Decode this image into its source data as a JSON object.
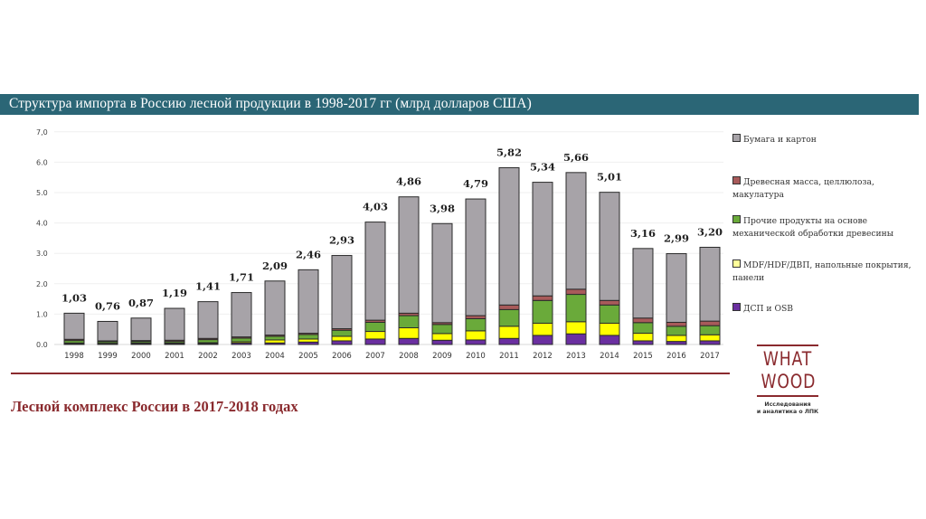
{
  "header": {
    "title": "Структура импорта в Россию лесной продукции в 1998-2017 гг (млрд долларов США)"
  },
  "footer": {
    "title": "Лесной комплекс России в 2017-2018 годах"
  },
  "logo": {
    "line1": "WHAT",
    "line2": "WOOD",
    "subtitle_line1": "Исследования",
    "subtitle_line2": "и аналитика о ЛПК"
  },
  "colors": {
    "banner": "#2b6676",
    "accent": "#8a2a2e"
  },
  "chart_data": {
    "type": "bar",
    "stacked": true,
    "title": "Структура импорта в Россию лесной продукции в 1998-2017 гг (млрд долларов США)",
    "xlabel": "",
    "ylabel": "",
    "ylim": [
      0,
      7
    ],
    "yticks": [
      0,
      1,
      2,
      3,
      4,
      5,
      6,
      7
    ],
    "ytick_labels": [
      "0.0",
      "1.0",
      "2.0",
      "3.0",
      "4.0",
      "5.0",
      "6.0",
      "7,0"
    ],
    "grid": true,
    "legend_position": "right",
    "categories": [
      "1998",
      "1999",
      "2000",
      "2001",
      "2002",
      "2003",
      "2004",
      "2005",
      "2006",
      "2007",
      "2008",
      "2009",
      "2010",
      "2011",
      "2012",
      "2013",
      "2014",
      "2015",
      "2016",
      "2017"
    ],
    "totals": [
      1.03,
      0.76,
      0.87,
      1.19,
      1.41,
      1.71,
      2.09,
      2.46,
      2.93,
      4.03,
      4.86,
      3.98,
      4.79,
      5.82,
      5.34,
      5.66,
      5.01,
      3.16,
      2.99,
      3.2
    ],
    "total_labels": [
      "1,03",
      "0,76",
      "0,87",
      "1,19",
      "1,41",
      "1,71",
      "2,09",
      "2,46",
      "2,93",
      "4,03",
      "4,86",
      "3,98",
      "4,79",
      "5,82",
      "5,34",
      "5,66",
      "5,01",
      "3,16",
      "2,99",
      "3,20"
    ],
    "series": [
      {
        "name": "ДСП и OSB",
        "color": "#6a2fa0",
        "values": [
          0.03,
          0.02,
          0.03,
          0.03,
          0.03,
          0.05,
          0.05,
          0.08,
          0.12,
          0.18,
          0.2,
          0.14,
          0.15,
          0.2,
          0.3,
          0.35,
          0.3,
          0.12,
          0.1,
          0.12
        ]
      },
      {
        "name": "MDF/HDF/ДВП, напольные покрытия, панели",
        "color": "#ffff00",
        "values": [
          0.02,
          0.02,
          0.02,
          0.02,
          0.03,
          0.04,
          0.1,
          0.1,
          0.15,
          0.25,
          0.35,
          0.22,
          0.3,
          0.4,
          0.4,
          0.4,
          0.4,
          0.25,
          0.2,
          0.2
        ]
      },
      {
        "name": "Прочие продукты на основе механической обработки древесины",
        "color": "#6aaa3a",
        "values": [
          0.08,
          0.05,
          0.05,
          0.05,
          0.1,
          0.12,
          0.12,
          0.15,
          0.2,
          0.3,
          0.4,
          0.3,
          0.4,
          0.55,
          0.75,
          0.9,
          0.6,
          0.35,
          0.3,
          0.3
        ]
      },
      {
        "name": "Древесная масса, целлюлоза, макулатура",
        "color": "#a85a5a",
        "values": [
          0.04,
          0.03,
          0.03,
          0.04,
          0.04,
          0.04,
          0.04,
          0.04,
          0.05,
          0.07,
          0.08,
          0.06,
          0.1,
          0.15,
          0.15,
          0.17,
          0.15,
          0.15,
          0.13,
          0.15
        ]
      },
      {
        "name": "Бумага и картон",
        "color": "#a7a3a8",
        "values": [
          0.86,
          0.64,
          0.74,
          1.05,
          1.21,
          1.46,
          1.78,
          2.09,
          2.41,
          3.23,
          3.83,
          3.26,
          3.84,
          4.52,
          3.74,
          3.84,
          3.56,
          2.29,
          2.26,
          2.43
        ]
      }
    ],
    "legend": [
      {
        "label_line1": "Бумага и картон",
        "label_line2": "",
        "color": "#a7a3a8"
      },
      {
        "label_line1": "Древесная масса, целлюлоза,",
        "label_line2": "макулатура",
        "color": "#a85a5a"
      },
      {
        "label_line1": "Прочие продукты на основе",
        "label_line2": "механической обработки древесины",
        "color": "#6aaa3a"
      },
      {
        "label_line1": "MDF/HDF/ДВП, напольные покрытия,",
        "label_line2": "панели",
        "color": "#ffff9a"
      },
      {
        "label_line1": "ДСП и OSB",
        "label_line2": "",
        "color": "#6a2fa0"
      }
    ]
  }
}
